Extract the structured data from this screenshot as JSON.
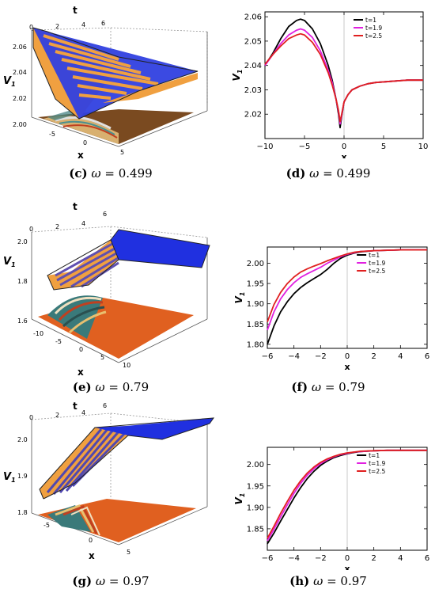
{
  "panels": [
    {
      "id": "c",
      "letter": "(c)",
      "omega": "0.499",
      "kind": "surface",
      "ticks_t": [
        "0",
        "2",
        "4",
        "6"
      ],
      "ticks_x": [
        "-5",
        "0",
        "5"
      ],
      "ticks_v": [
        "2.06",
        "2.04",
        "2.02",
        "2.00"
      ],
      "axis_t": "t",
      "axis_x": "x",
      "axis_v": "V",
      "axis_v_sub": "1"
    },
    {
      "id": "e",
      "letter": "(e)",
      "omega": "0.79",
      "kind": "surface",
      "ticks_t": [
        "0",
        "2",
        "4",
        "6"
      ],
      "ticks_x": [
        "-10",
        "-5",
        "0",
        "5",
        "10"
      ],
      "ticks_v": [
        "2.0",
        "1.8",
        "1.6"
      ],
      "axis_t": "t",
      "axis_x": "x",
      "axis_v": "V",
      "axis_v_sub": "1"
    },
    {
      "id": "g",
      "letter": "(g)",
      "omega": "0.97",
      "kind": "surface",
      "ticks_t": [
        "0",
        "2",
        "4",
        "6"
      ],
      "ticks_x": [
        "-5",
        "0",
        "5"
      ],
      "ticks_v": [
        "2.0",
        "1.9",
        "1.8"
      ],
      "axis_t": "t",
      "axis_x": "x",
      "axis_v": "V",
      "axis_v_sub": "1"
    }
  ],
  "captions": {
    "c": {
      "letter": "(c)",
      "omega_sym": "ω",
      "eq": " = 0.499"
    },
    "d": {
      "letter": "(d)",
      "omega_sym": "ω",
      "eq": " = 0.499"
    },
    "e": {
      "letter": "(e)",
      "omega_sym": "ω",
      "eq": " = 0.79"
    },
    "f": {
      "letter": "(f)",
      "omega_sym": "ω",
      "eq": " = 0.79"
    },
    "g": {
      "letter": "(g)",
      "omega_sym": "ω",
      "eq": " = 0.97"
    },
    "h": {
      "letter": "(h)",
      "omega_sym": "ω",
      "eq": " = 0.97"
    }
  },
  "chart_data": [
    {
      "panel": "d",
      "type": "line",
      "xlabel": "x",
      "ylabel": "V",
      "ylabel_sub": "1",
      "xlim": [
        -10,
        10
      ],
      "ylim": [
        2.01,
        2.062
      ],
      "xticks": [
        -10,
        -5,
        0,
        5,
        10
      ],
      "yticks": [
        2.02,
        2.03,
        2.04,
        2.05,
        2.06
      ],
      "ytick_labels": [
        "2.02",
        "2.03",
        "2.04",
        "2.05",
        "2.06"
      ],
      "legend_position": "top-right",
      "series": [
        {
          "name": "t=1",
          "color": "#000000",
          "x": [
            -10,
            -9,
            -8,
            -7,
            -6,
            -5.5,
            -5,
            -4,
            -3,
            -2,
            -1.5,
            -1,
            -0.7,
            -0.5,
            -0.3,
            0,
            0.5,
            1,
            2,
            3,
            4,
            6,
            8,
            10
          ],
          "y": [
            2.04,
            2.045,
            2.051,
            2.056,
            2.0585,
            2.059,
            2.0585,
            2.055,
            2.049,
            2.04,
            2.034,
            2.026,
            2.02,
            2.0145,
            2.019,
            2.025,
            2.028,
            2.03,
            2.0315,
            2.0325,
            2.033,
            2.0335,
            2.034,
            2.034
          ]
        },
        {
          "name": "t=1.9",
          "color": "#e020e0",
          "x": [
            -10,
            -9,
            -8,
            -7,
            -6,
            -5.5,
            -5,
            -4,
            -3,
            -2,
            -1.5,
            -1,
            -0.7,
            -0.5,
            -0.3,
            0,
            0.5,
            1,
            2,
            3,
            4,
            6,
            8,
            10
          ],
          "y": [
            2.04,
            2.0445,
            2.049,
            2.0525,
            2.0545,
            2.055,
            2.0545,
            2.0515,
            2.046,
            2.038,
            2.033,
            2.026,
            2.021,
            2.016,
            2.0195,
            2.025,
            2.028,
            2.03,
            2.0315,
            2.0325,
            2.033,
            2.0335,
            2.034,
            2.034
          ]
        },
        {
          "name": "t=2.5",
          "color": "#e02020",
          "x": [
            -10,
            -9,
            -8,
            -7,
            -6,
            -5.5,
            -5,
            -4,
            -3,
            -2,
            -1.5,
            -1,
            -0.7,
            -0.5,
            -0.3,
            0,
            0.5,
            1,
            2,
            3,
            4,
            6,
            8,
            10
          ],
          "y": [
            2.0405,
            2.0445,
            2.048,
            2.051,
            2.0525,
            2.053,
            2.0525,
            2.0495,
            2.0445,
            2.037,
            2.032,
            2.026,
            2.0215,
            2.017,
            2.02,
            2.025,
            2.028,
            2.03,
            2.0315,
            2.0325,
            2.033,
            2.0335,
            2.034,
            2.034
          ]
        }
      ]
    },
    {
      "panel": "f",
      "type": "line",
      "xlabel": "x",
      "ylabel": "V",
      "ylabel_sub": "1",
      "xlim": [
        -6,
        6
      ],
      "ylim": [
        1.79,
        2.04
      ],
      "xticks": [
        -6,
        -4,
        -2,
        0,
        2,
        4,
        6
      ],
      "yticks": [
        1.8,
        1.85,
        1.9,
        1.95,
        2.0
      ],
      "ytick_labels": [
        "1.80",
        "1.85",
        "1.90",
        "1.95",
        "2.00"
      ],
      "legend_position": "top-right",
      "series": [
        {
          "name": "t=1",
          "color": "#000000",
          "x": [
            -6,
            -5.5,
            -5,
            -4.5,
            -4,
            -3.5,
            -3,
            -2.5,
            -2,
            -1.5,
            -1,
            -0.5,
            0,
            0.5,
            1,
            2,
            3,
            4,
            5,
            6
          ],
          "y": [
            1.8,
            1.845,
            1.88,
            1.905,
            1.925,
            1.94,
            1.952,
            1.962,
            1.972,
            1.985,
            2.0,
            2.012,
            2.02,
            2.025,
            2.028,
            2.031,
            2.032,
            2.033,
            2.033,
            2.033
          ]
        },
        {
          "name": "t=1.9",
          "color": "#e020e0",
          "x": [
            -6,
            -5.5,
            -5,
            -4.5,
            -4,
            -3.5,
            -3,
            -2.5,
            -2,
            -1.5,
            -1,
            -0.5,
            0,
            0.5,
            1,
            2,
            3,
            4,
            5,
            6
          ],
          "y": [
            1.835,
            1.88,
            1.912,
            1.935,
            1.952,
            1.965,
            1.974,
            1.982,
            1.99,
            2.0,
            2.008,
            2.016,
            2.022,
            2.026,
            2.029,
            2.031,
            2.032,
            2.033,
            2.033,
            2.033
          ]
        },
        {
          "name": "t=2.5",
          "color": "#e02020",
          "x": [
            -6,
            -5.5,
            -5,
            -4.5,
            -4,
            -3.5,
            -3,
            -2.5,
            -2,
            -1.5,
            -1,
            -0.5,
            0,
            0.5,
            1,
            2,
            3,
            4,
            5,
            6
          ],
          "y": [
            1.855,
            1.898,
            1.928,
            1.95,
            1.966,
            1.978,
            1.986,
            1.993,
            1.999,
            2.006,
            2.012,
            2.018,
            2.023,
            2.027,
            2.029,
            2.031,
            2.032,
            2.033,
            2.033,
            2.033
          ]
        }
      ]
    },
    {
      "panel": "h",
      "type": "line",
      "xlabel": "x",
      "ylabel": "V",
      "ylabel_sub": "1",
      "xlim": [
        -6,
        6
      ],
      "ylim": [
        1.8,
        2.04
      ],
      "xticks": [
        -6,
        -4,
        -2,
        0,
        2,
        4,
        6
      ],
      "yticks": [
        1.85,
        1.9,
        1.95,
        2.0
      ],
      "ytick_labels": [
        "1.85",
        "1.90",
        "1.95",
        "2.00"
      ],
      "legend_position": "top-right",
      "series": [
        {
          "name": "t=1",
          "color": "#000000",
          "x": [
            -6,
            -5.5,
            -5,
            -4.5,
            -4,
            -3.5,
            -3,
            -2.5,
            -2,
            -1.5,
            -1,
            -0.5,
            0,
            0.5,
            1,
            2,
            3,
            4,
            5,
            6
          ],
          "y": [
            1.815,
            1.84,
            1.868,
            1.895,
            1.922,
            1.946,
            1.967,
            1.984,
            1.998,
            2.008,
            2.016,
            2.021,
            2.025,
            2.028,
            2.03,
            2.032,
            2.033,
            2.033,
            2.033,
            2.033
          ]
        },
        {
          "name": "t=1.9",
          "color": "#e020e0",
          "x": [
            -6,
            -5.5,
            -5,
            -4.5,
            -4,
            -3.5,
            -3,
            -2.5,
            -2,
            -1.5,
            -1,
            -0.5,
            0,
            0.5,
            1,
            2,
            3,
            4,
            5,
            6
          ],
          "y": [
            1.822,
            1.849,
            1.878,
            1.906,
            1.933,
            1.956,
            1.975,
            1.99,
            2.002,
            2.011,
            2.018,
            2.023,
            2.026,
            2.029,
            2.03,
            2.032,
            2.033,
            2.033,
            2.033,
            2.033
          ]
        },
        {
          "name": "t=2.5",
          "color": "#e02020",
          "x": [
            -6,
            -5.5,
            -5,
            -4.5,
            -4,
            -3.5,
            -3,
            -2.5,
            -2,
            -1.5,
            -1,
            -0.5,
            0,
            0.5,
            1,
            2,
            3,
            4,
            5,
            6
          ],
          "y": [
            1.828,
            1.856,
            1.886,
            1.914,
            1.94,
            1.962,
            1.98,
            1.994,
            2.005,
            2.013,
            2.019,
            2.024,
            2.027,
            2.029,
            2.031,
            2.032,
            2.033,
            2.033,
            2.033,
            2.033
          ]
        }
      ]
    }
  ]
}
